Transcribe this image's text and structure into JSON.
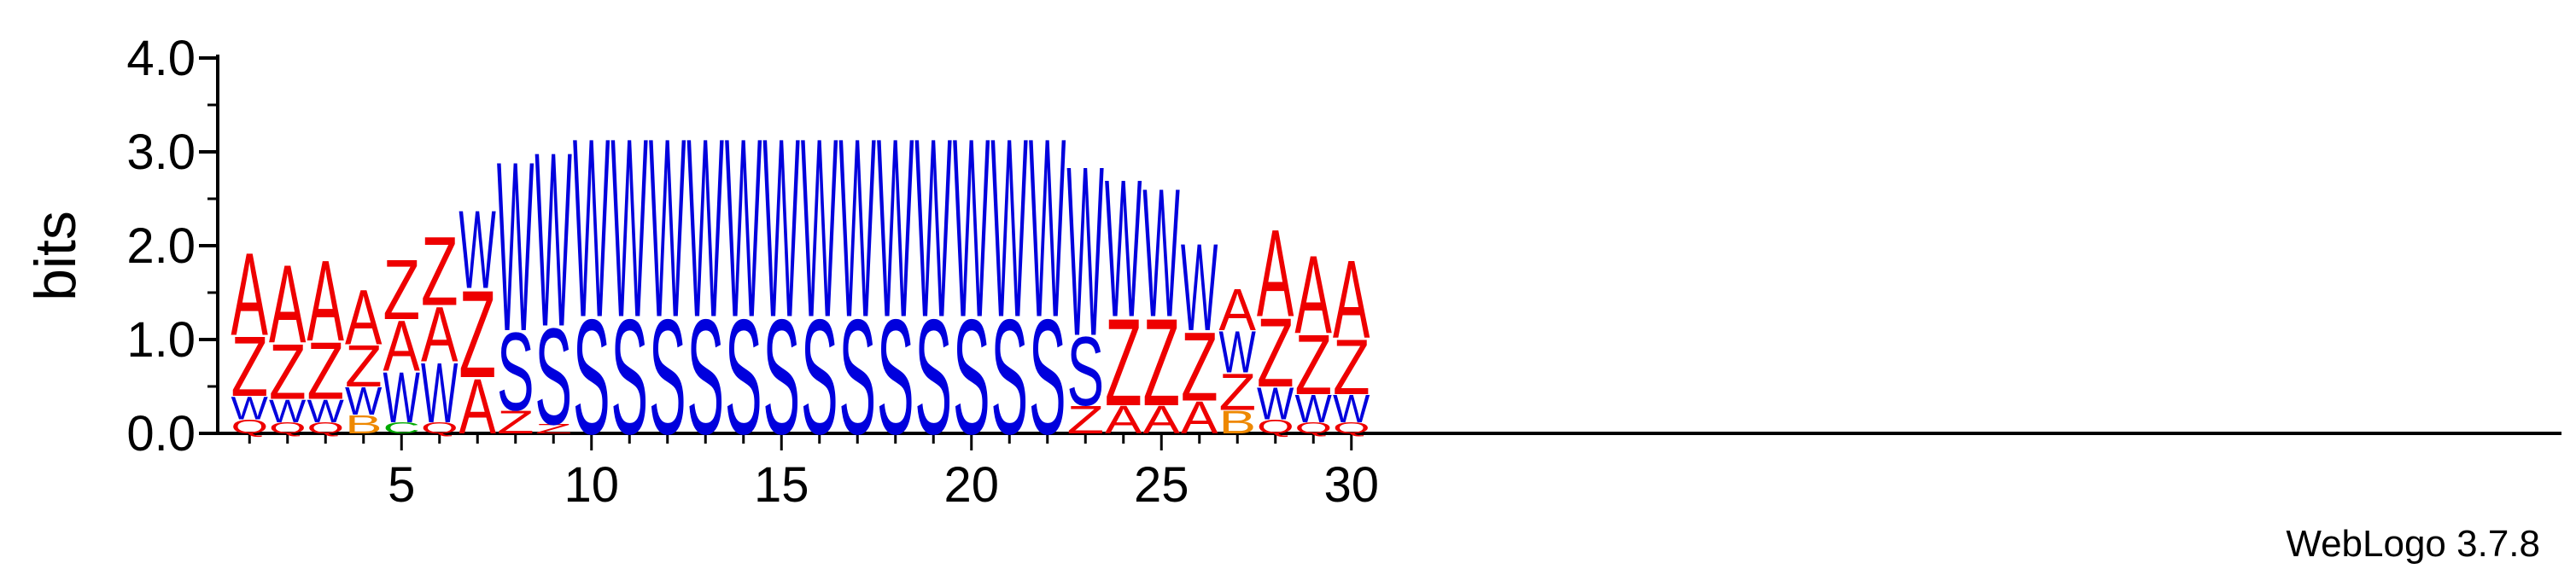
{
  "chart_data": {
    "type": "sequence-logo",
    "ylabel": "bits",
    "ylim": [
      0,
      4.0
    ],
    "y_ticks": [
      "0.0",
      "1.0",
      "2.0",
      "3.0",
      "4.0"
    ],
    "x_range": [
      1,
      30
    ],
    "x_ticks": [
      5,
      10,
      15,
      20,
      25,
      30
    ],
    "credit": "WebLogo 3.7.8",
    "colors": {
      "A": "#ee0000",
      "Z": "#ee0000",
      "W": "#0000dd",
      "S": "#0000dd",
      "B": "#ee8800",
      "C": "#00aa00",
      "Q": "#ee0000"
    },
    "positions": [
      {
        "pos": 1,
        "stack": [
          [
            "Q",
            0.15
          ],
          [
            "W",
            0.25
          ],
          [
            "Z",
            0.65
          ],
          [
            "A",
            0.9
          ]
        ]
      },
      {
        "pos": 2,
        "stack": [
          [
            "Q",
            0.12
          ],
          [
            "W",
            0.25
          ],
          [
            "Z",
            0.6
          ],
          [
            "A",
            0.85
          ]
        ]
      },
      {
        "pos": 3,
        "stack": [
          [
            "Q",
            0.12
          ],
          [
            "W",
            0.25
          ],
          [
            "Z",
            0.62
          ],
          [
            "A",
            0.88
          ]
        ]
      },
      {
        "pos": 4,
        "stack": [
          [
            "B",
            0.2
          ],
          [
            "W",
            0.3
          ],
          [
            "Z",
            0.45
          ],
          [
            "A",
            0.6
          ]
        ]
      },
      {
        "pos": 5,
        "stack": [
          [
            "C",
            0.12
          ],
          [
            "W",
            0.55
          ],
          [
            "A",
            0.55
          ],
          [
            "Z",
            0.65
          ]
        ]
      },
      {
        "pos": 6,
        "stack": [
          [
            "Q",
            0.12
          ],
          [
            "W",
            0.65
          ],
          [
            "A",
            0.6
          ],
          [
            "Z",
            0.75
          ]
        ]
      },
      {
        "pos": 7,
        "stack": [
          [
            "A",
            0.6
          ],
          [
            "Z",
            0.95
          ],
          [
            "W",
            0.85
          ]
        ]
      },
      {
        "pos": 8,
        "stack": [
          [
            "Z",
            0.25
          ],
          [
            "S",
            0.85
          ],
          [
            "W",
            1.85
          ]
        ]
      },
      {
        "pos": 9,
        "stack": [
          [
            "Z",
            0.1
          ],
          [
            "S",
            1.05
          ],
          [
            "W",
            1.9
          ]
        ]
      },
      {
        "pos": 10,
        "stack": [
          [
            "S",
            1.25
          ],
          [
            "W",
            1.95
          ]
        ]
      },
      {
        "pos": 11,
        "stack": [
          [
            "S",
            1.25
          ],
          [
            "W",
            1.95
          ]
        ]
      },
      {
        "pos": 12,
        "stack": [
          [
            "S",
            1.25
          ],
          [
            "W",
            1.95
          ]
        ]
      },
      {
        "pos": 13,
        "stack": [
          [
            "S",
            1.25
          ],
          [
            "W",
            1.95
          ]
        ]
      },
      {
        "pos": 14,
        "stack": [
          [
            "S",
            1.25
          ],
          [
            "W",
            1.95
          ]
        ]
      },
      {
        "pos": 15,
        "stack": [
          [
            "S",
            1.25
          ],
          [
            "W",
            1.95
          ]
        ]
      },
      {
        "pos": 16,
        "stack": [
          [
            "S",
            1.25
          ],
          [
            "W",
            1.95
          ]
        ]
      },
      {
        "pos": 17,
        "stack": [
          [
            "S",
            1.25
          ],
          [
            "W",
            1.95
          ]
        ]
      },
      {
        "pos": 18,
        "stack": [
          [
            "S",
            1.25
          ],
          [
            "W",
            1.95
          ]
        ]
      },
      {
        "pos": 19,
        "stack": [
          [
            "S",
            1.25
          ],
          [
            "W",
            1.95
          ]
        ]
      },
      {
        "pos": 20,
        "stack": [
          [
            "S",
            1.25
          ],
          [
            "W",
            1.95
          ]
        ]
      },
      {
        "pos": 21,
        "stack": [
          [
            "S",
            1.25
          ],
          [
            "W",
            1.95
          ]
        ]
      },
      {
        "pos": 22,
        "stack": [
          [
            "S",
            1.25
          ],
          [
            "W",
            1.95
          ]
        ]
      },
      {
        "pos": 23,
        "stack": [
          [
            "Z",
            0.3
          ],
          [
            "S",
            0.75
          ],
          [
            "W",
            1.85
          ]
        ]
      },
      {
        "pos": 24,
        "stack": [
          [
            "A",
            0.3
          ],
          [
            "Z",
            0.95
          ],
          [
            "W",
            1.5
          ]
        ]
      },
      {
        "pos": 25,
        "stack": [
          [
            "A",
            0.3
          ],
          [
            "Z",
            0.95
          ],
          [
            "W",
            1.4
          ]
        ]
      },
      {
        "pos": 26,
        "stack": [
          [
            "A",
            0.35
          ],
          [
            "Z",
            0.75
          ],
          [
            "W",
            0.95
          ]
        ]
      },
      {
        "pos": 27,
        "stack": [
          [
            "B",
            0.25
          ],
          [
            "Z",
            0.4
          ],
          [
            "W",
            0.45
          ],
          [
            "A",
            0.45
          ]
        ]
      },
      {
        "pos": 28,
        "stack": [
          [
            "Q",
            0.15
          ],
          [
            "W",
            0.35
          ],
          [
            "Z",
            0.75
          ],
          [
            "A",
            0.95
          ]
        ]
      },
      {
        "pos": 29,
        "stack": [
          [
            "Q",
            0.12
          ],
          [
            "W",
            0.3
          ],
          [
            "Z",
            0.65
          ],
          [
            "A",
            0.85
          ]
        ]
      },
      {
        "pos": 30,
        "stack": [
          [
            "Q",
            0.12
          ],
          [
            "W",
            0.3
          ],
          [
            "Z",
            0.6
          ],
          [
            "A",
            0.85
          ]
        ]
      }
    ]
  }
}
